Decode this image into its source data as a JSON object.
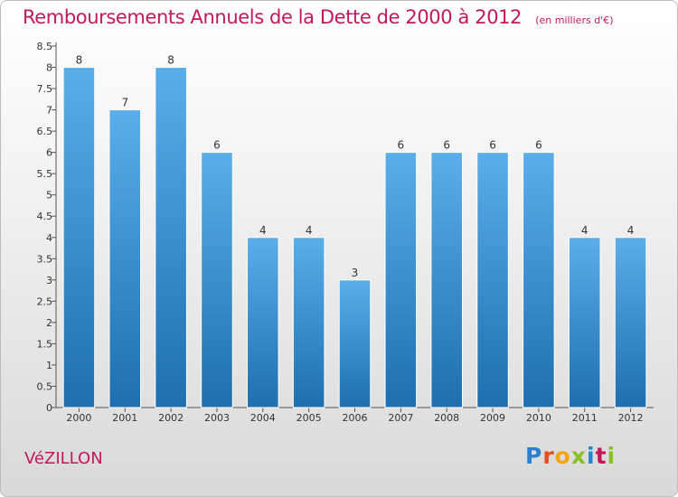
{
  "header": {
    "title": "Remboursements Annuels de la Dette de 2000 à 2012",
    "subtitle": "(en milliers d'€)"
  },
  "footer": {
    "commune": "VéZILLON",
    "logo_text": "Proxiti"
  },
  "colors": {
    "title": "#c2185b",
    "bar_light": "#5aaee9",
    "bar_dark": "#1d6fb0"
  },
  "chart_data": {
    "type": "bar",
    "title": "Remboursements Annuels de la Dette de 2000 à 2012",
    "subtitle": "(en milliers d'€)",
    "xlabel": "",
    "ylabel": "",
    "categories": [
      "2000",
      "2001",
      "2002",
      "2003",
      "2004",
      "2005",
      "2006",
      "2007",
      "2008",
      "2009",
      "2010",
      "2011",
      "2012"
    ],
    "values": [
      8,
      7,
      8,
      6,
      4,
      4,
      3,
      6,
      6,
      6,
      6,
      4,
      4
    ],
    "ylim": [
      0,
      8.5
    ],
    "yticks": [
      0,
      0.5,
      1,
      1.5,
      2,
      2.5,
      3,
      3.5,
      4,
      4.5,
      5,
      5.5,
      6,
      6.5,
      7,
      7.5,
      8,
      8.5
    ],
    "ytick_labels": [
      "0",
      "0.5",
      "1",
      "1.5",
      "2",
      "2.5",
      "3",
      "3.5",
      "4",
      "4.5",
      "5",
      "5.5",
      "6",
      "6.5",
      "7",
      "7.5",
      "8",
      "8.5"
    ],
    "data_labels": [
      "8",
      "7",
      "8",
      "6",
      "4",
      "4",
      "3",
      "6",
      "6",
      "6",
      "6",
      "4",
      "4"
    ],
    "grid": false,
    "legend": "none"
  }
}
